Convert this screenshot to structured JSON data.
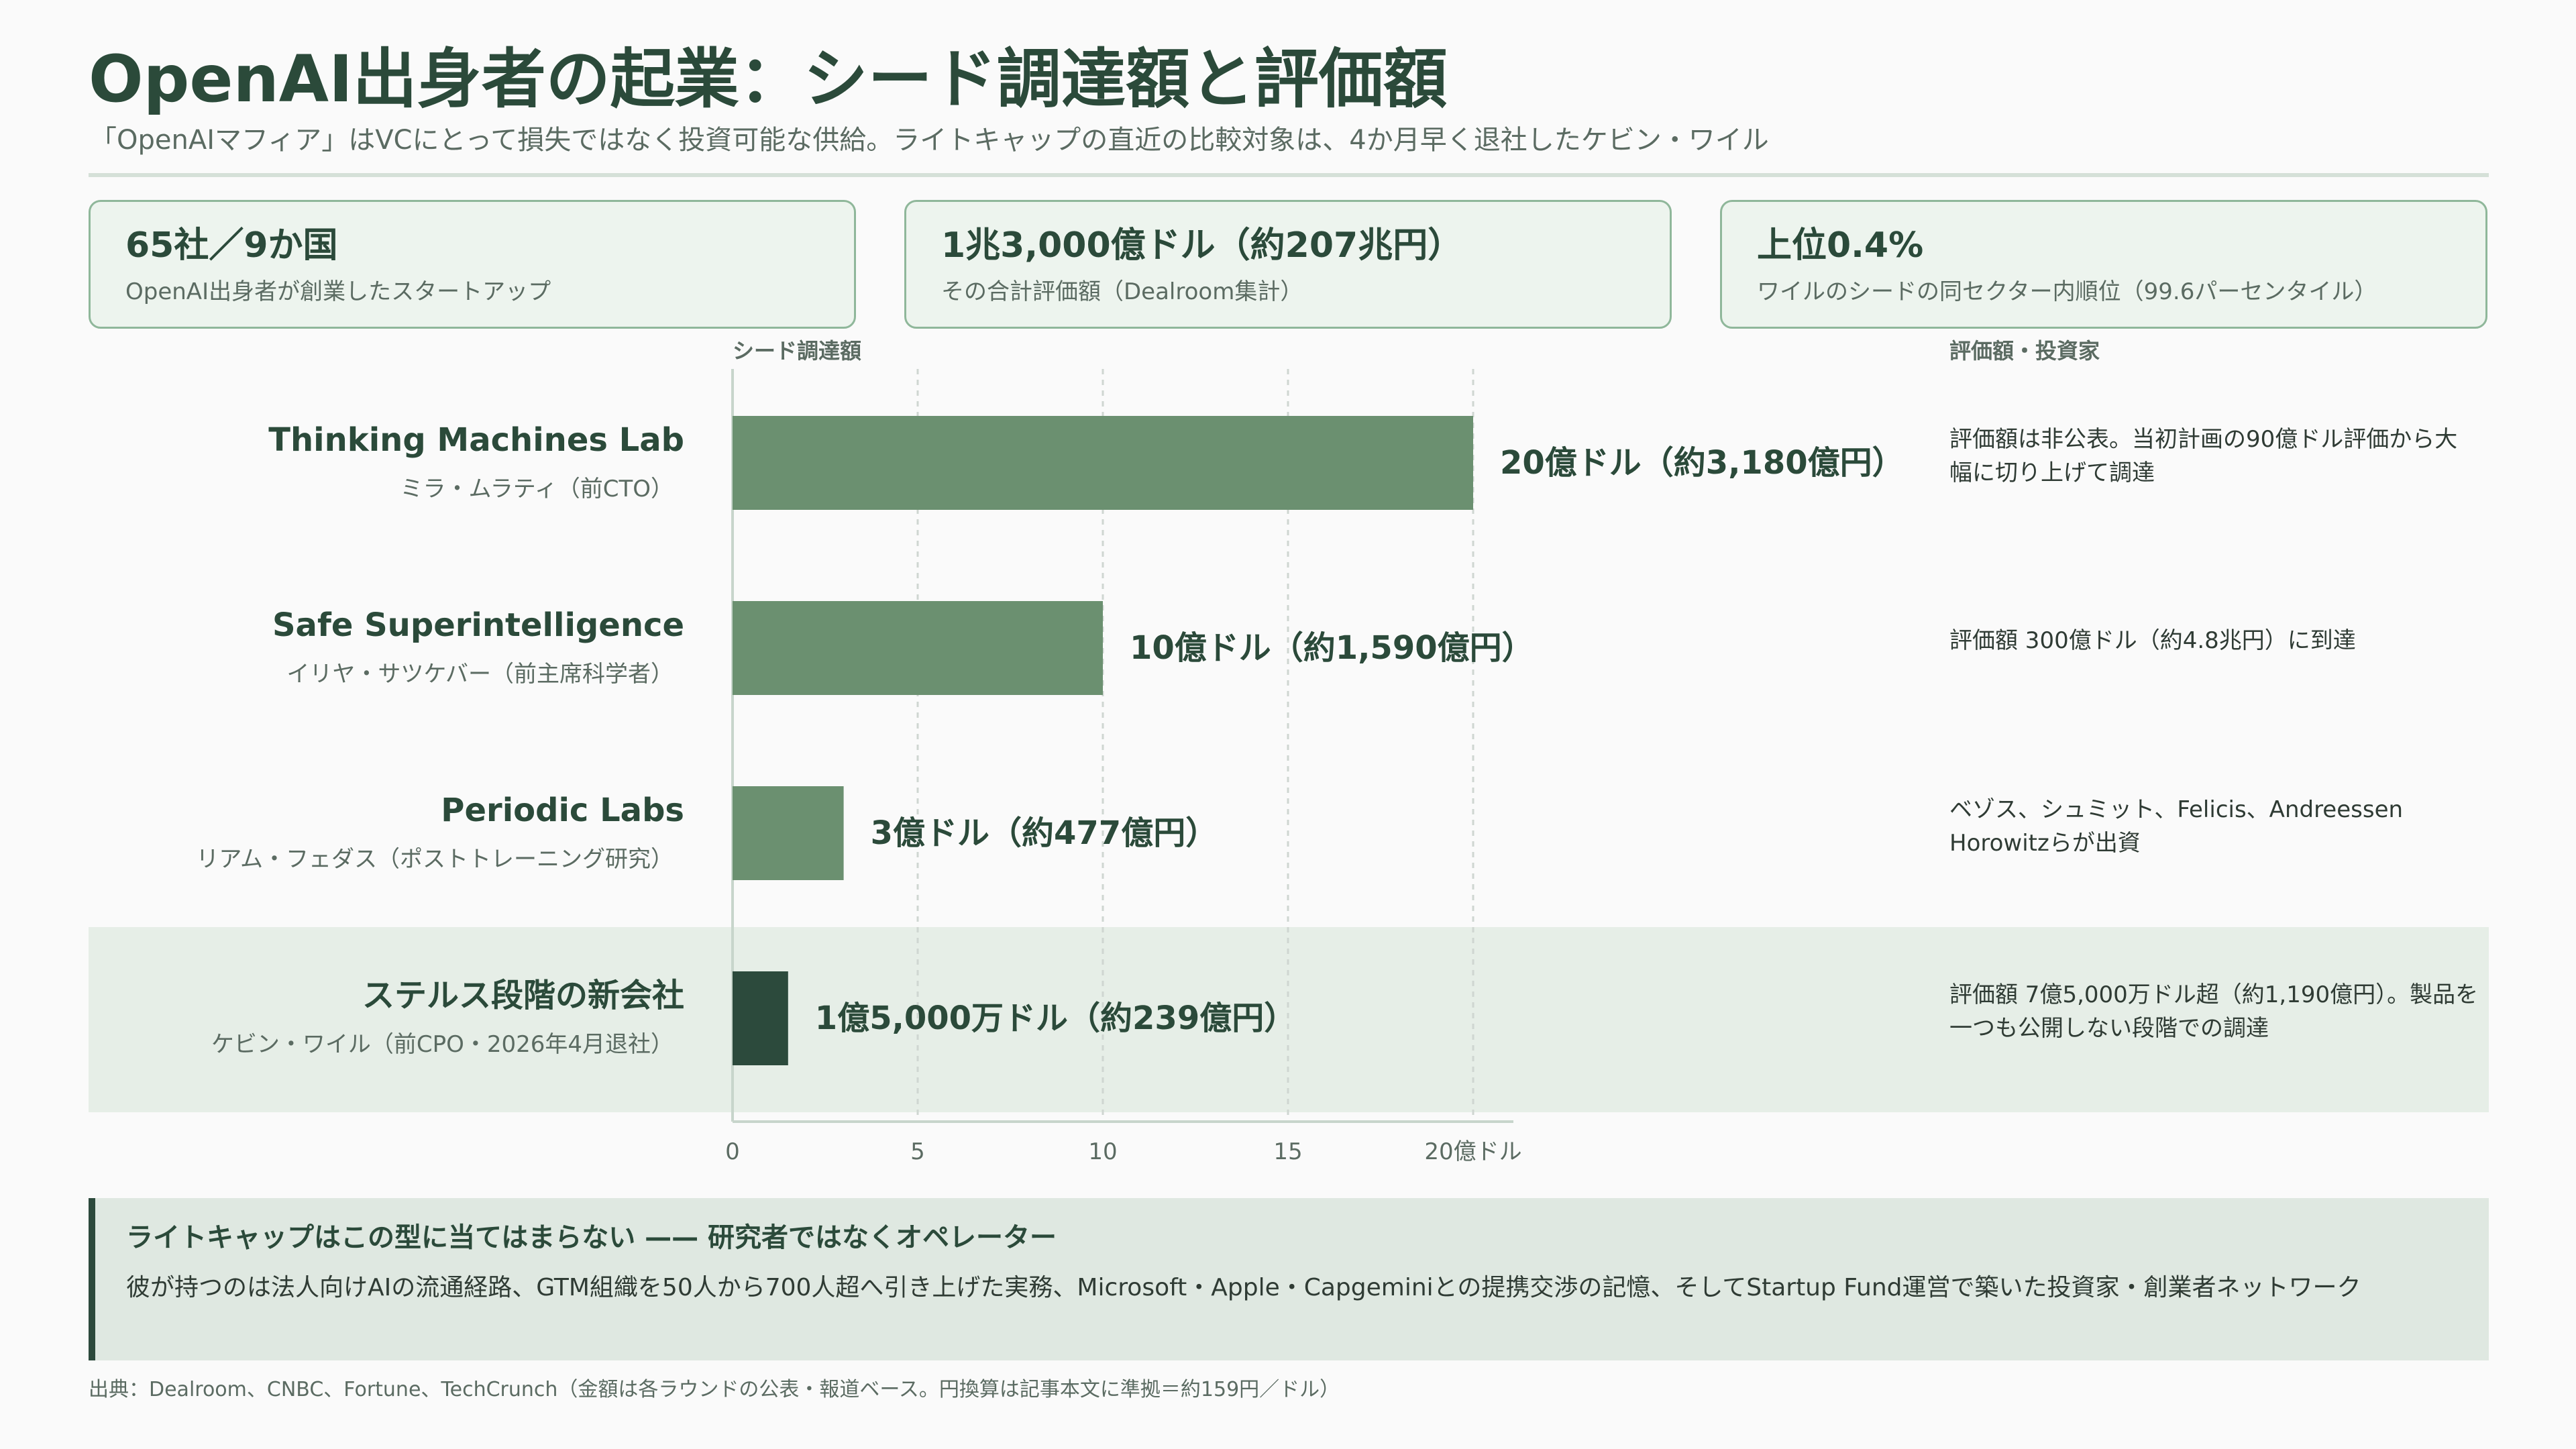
{
  "header": {
    "title": "OpenAI出身者の起業：シード調達額と評価額",
    "subtitle": "「OpenAIマフィア」はVCにとって損失ではなく投資可能な供給。ライトキャップの直近の比較対象は、4か月早く退社したケビン・ワイル"
  },
  "kpis": [
    {
      "value": "65社／9か国",
      "label": "OpenAI出身者が創業したスタートアップ"
    },
    {
      "value": "1兆3,000億ドル（約207兆円）",
      "label": "その合計評価額（Dealroom集計）"
    },
    {
      "value": "上位0.4%",
      "label": "ワイルのシードの同セクター内順位（99.6パーセンタイル）"
    }
  ],
  "columns": {
    "seed": "シード調達額",
    "valuation": "評価額・投資家"
  },
  "chart_data": {
    "type": "bar",
    "orientation": "horizontal",
    "title": "",
    "xlabel": "",
    "ylabel": "",
    "unit": "億ドル",
    "categories": [
      "Thinking Machines Lab",
      "Safe Superintelligence",
      "Periodic Labs",
      "ステルス段階の新会社"
    ],
    "founders": [
      "ミラ・ムラティ（前CTO）",
      "イリヤ・サツケバー（前主席科学者）",
      "リアム・フェダス（ポストトレーニング研究）",
      "ケビン・ワイル（前CPO・2026年4月退社）"
    ],
    "values": [
      20,
      10,
      3,
      1.5
    ],
    "value_labels": [
      "20億ドル（約3,180億円）",
      "10億ドル（約1,590億円）",
      "3億ドル（約477億円）",
      "1億5,000万ドル（約239億円）"
    ],
    "notes": [
      "評価額は非公表。当初計画の90億ドル評価から大幅に切り上げて調達",
      "評価額 300億ドル（約4.8兆円）に到達",
      "ベゾス、シュミット、Felicis、Andreessen Horowitzらが出資",
      "評価額 7億5,000万ドル超（約1,190億円）。製品を一つも公開しない段階での調達"
    ],
    "xlim": [
      0,
      20
    ],
    "xticks": [
      "0",
      "5",
      "10",
      "15",
      "20億ドル"
    ],
    "grid": true,
    "highlight_index": 3,
    "colors": {
      "bar": "#6b9070",
      "highlight_bar": "#2c4a3c",
      "highlight_band": "#e6eee7"
    }
  },
  "callout": {
    "title": "ライトキャップはこの型に当てはまらない —— 研究者ではなくオペレーター",
    "body": "彼が持つのは法人向けAIの流通経路、GTM組織を50人から700人超へ引き上げた実務、Microsoft・Apple・Capgeminiとの提携交渉の記憶、そしてStartup Fund運営で築いた投資家・創業者ネットワーク"
  },
  "source": "出典：Dealroom、CNBC、Fortune、TechCrunch（金額は各ラウンドの公表・報道ベース。円換算は記事本文に準拠＝約159円／ドル）"
}
